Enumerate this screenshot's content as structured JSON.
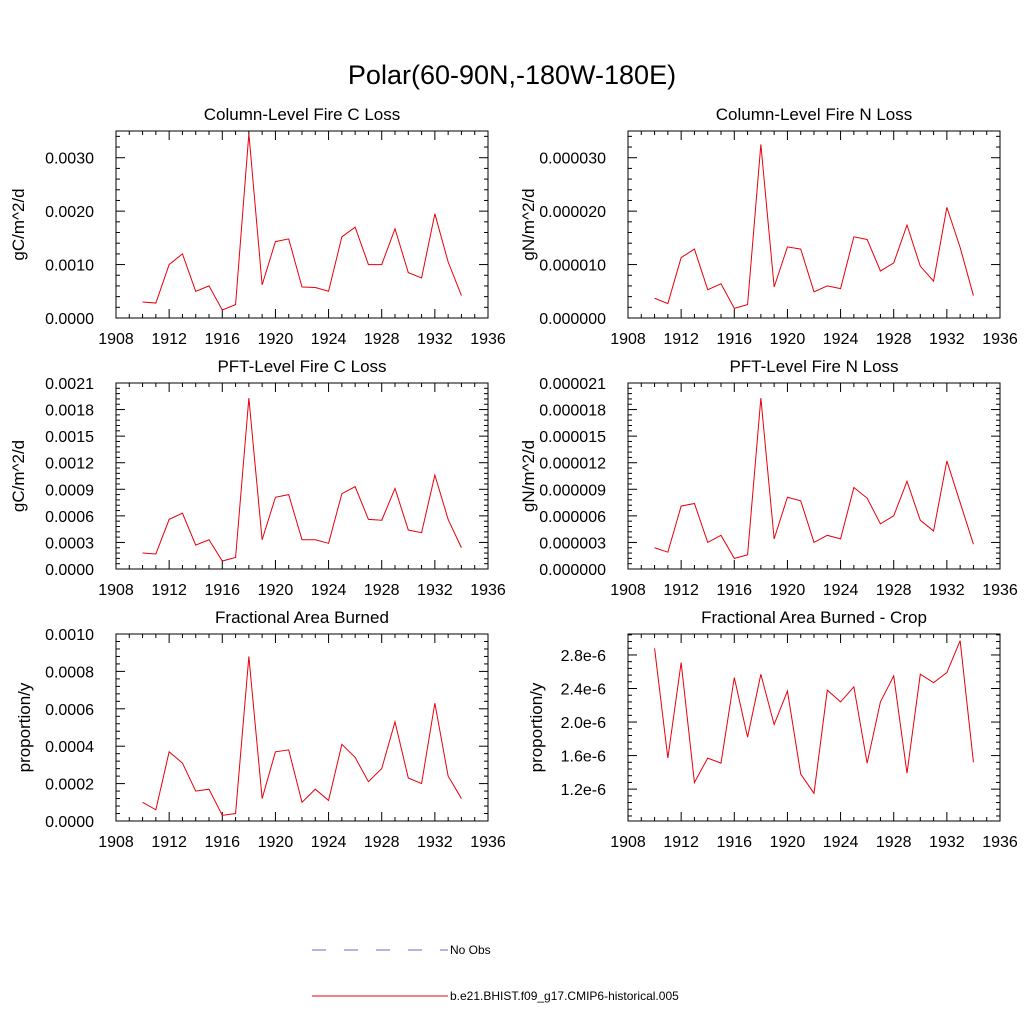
{
  "title": "Polar(60-90N,-180W-180E)",
  "colors": {
    "series": "#e8000b",
    "obs": "#6a6acd",
    "axis": "#000000"
  },
  "legend": {
    "entries": [
      {
        "label": "No Obs",
        "style": "dashed",
        "color": "#6a6acd"
      },
      {
        "label": "b.e21.BHIST.f09_g17.CMIP6-historical.005",
        "style": "solid",
        "color": "#e8000b"
      }
    ]
  },
  "chart_data": [
    {
      "type": "line",
      "title": "Column-Level Fire C Loss",
      "ylabel": "gC/m^2/d",
      "xlim": [
        1908,
        1936
      ],
      "ylim": [
        0,
        0.0035
      ],
      "xticks": [
        1908,
        1912,
        1916,
        1920,
        1924,
        1928,
        1932,
        1936
      ],
      "xtick_labels": [
        "1908",
        "1912",
        "1916",
        "1920",
        "1924",
        "1928",
        "1932",
        "1936"
      ],
      "yticks": [
        0,
        0.001,
        0.002,
        0.003
      ],
      "ytick_labels": [
        "0.0000",
        "0.0010",
        "0.0020",
        "0.0030"
      ],
      "series": [
        {
          "name": "b.e21.BHIST.f09_g17.CMIP6-historical.005",
          "x": [
            1910,
            1911,
            1912,
            1913,
            1914,
            1915,
            1916,
            1917,
            1918,
            1919,
            1920,
            1921,
            1922,
            1923,
            1924,
            1925,
            1926,
            1927,
            1928,
            1929,
            1930,
            1931,
            1932,
            1933,
            1934
          ],
          "values": [
            0.0003,
            0.00028,
            0.001,
            0.0012,
            0.0005,
            0.0006,
            0.00015,
            0.00025,
            0.00345,
            0.00062,
            0.00143,
            0.00148,
            0.00058,
            0.00057,
            0.0005,
            0.00152,
            0.0017,
            0.001,
            0.001,
            0.00167,
            0.00085,
            0.00075,
            0.00195,
            0.00105,
            0.00042
          ]
        }
      ]
    },
    {
      "type": "line",
      "title": "Column-Level Fire N Loss",
      "ylabel": "gN/m^2/d",
      "xlim": [
        1908,
        1936
      ],
      "ylim": [
        0,
        3.5e-05
      ],
      "xticks": [
        1908,
        1912,
        1916,
        1920,
        1924,
        1928,
        1932,
        1936
      ],
      "xtick_labels": [
        "1908",
        "1912",
        "1916",
        "1920",
        "1924",
        "1928",
        "1932",
        "1936"
      ],
      "yticks": [
        0,
        1e-05,
        2e-05,
        3e-05
      ],
      "ytick_labels": [
        "0.000000",
        "0.000010",
        "0.000020",
        "0.000030"
      ],
      "series": [
        {
          "name": "b.e21.BHIST.f09_g17.CMIP6-historical.005",
          "x": [
            1910,
            1911,
            1912,
            1913,
            1914,
            1915,
            1916,
            1917,
            1918,
            1919,
            1920,
            1921,
            1922,
            1923,
            1924,
            1925,
            1926,
            1927,
            1928,
            1929,
            1930,
            1931,
            1932,
            1933,
            1934
          ],
          "values": [
            3.7e-06,
            2.7e-06,
            1.13e-05,
            1.29e-05,
            5.3e-06,
            6.4e-06,
            1.8e-06,
            2.5e-06,
            3.25e-05,
            5.8e-06,
            1.33e-05,
            1.29e-05,
            4.9e-06,
            6e-06,
            5.5e-06,
            1.52e-05,
            1.47e-05,
            8.8e-06,
            1.03e-05,
            1.74e-05,
            9.7e-06,
            6.9e-06,
            2.07e-05,
            1.32e-05,
            4.2e-06
          ]
        }
      ]
    },
    {
      "type": "line",
      "title": "PFT-Level Fire C Loss",
      "ylabel": "gC/m^2/d",
      "xlim": [
        1908,
        1936
      ],
      "ylim": [
        0,
        0.0021
      ],
      "xticks": [
        1908,
        1912,
        1916,
        1920,
        1924,
        1928,
        1932,
        1936
      ],
      "xtick_labels": [
        "1908",
        "1912",
        "1916",
        "1920",
        "1924",
        "1928",
        "1932",
        "1936"
      ],
      "yticks": [
        0,
        0.0003,
        0.0006,
        0.0009,
        0.0012,
        0.0015,
        0.0018,
        0.0021
      ],
      "ytick_labels": [
        "0.0000",
        "0.0003",
        "0.0006",
        "0.0009",
        "0.0012",
        "0.0015",
        "0.0018",
        "0.0021"
      ],
      "series": [
        {
          "name": "b.e21.BHIST.f09_g17.CMIP6-historical.005",
          "x": [
            1910,
            1911,
            1912,
            1913,
            1914,
            1915,
            1916,
            1917,
            1918,
            1919,
            1920,
            1921,
            1922,
            1923,
            1924,
            1925,
            1926,
            1927,
            1928,
            1929,
            1930,
            1931,
            1932,
            1933,
            1934
          ],
          "values": [
            0.00018,
            0.00017,
            0.00056,
            0.00063,
            0.00027,
            0.00033,
            9e-05,
            0.00013,
            0.00193,
            0.00033,
            0.00081,
            0.00084,
            0.00033,
            0.00033,
            0.00029,
            0.00085,
            0.00093,
            0.00056,
            0.00055,
            0.00091,
            0.00044,
            0.00041,
            0.00106,
            0.00056,
            0.00024
          ]
        }
      ]
    },
    {
      "type": "line",
      "title": "PFT-Level Fire N Loss",
      "ylabel": "gN/m^2/d",
      "xlim": [
        1908,
        1936
      ],
      "ylim": [
        0,
        2.1e-05
      ],
      "xticks": [
        1908,
        1912,
        1916,
        1920,
        1924,
        1928,
        1932,
        1936
      ],
      "xtick_labels": [
        "1908",
        "1912",
        "1916",
        "1920",
        "1924",
        "1928",
        "1932",
        "1936"
      ],
      "yticks": [
        0,
        3e-06,
        6e-06,
        9e-06,
        1.2e-05,
        1.5e-05,
        1.8e-05,
        2.1e-05
      ],
      "ytick_labels": [
        "0.000000",
        "0.000003",
        "0.000006",
        "0.000009",
        "0.000012",
        "0.000015",
        "0.000018",
        "0.000021"
      ],
      "series": [
        {
          "name": "b.e21.BHIST.f09_g17.CMIP6-historical.005",
          "x": [
            1910,
            1911,
            1912,
            1913,
            1914,
            1915,
            1916,
            1917,
            1918,
            1919,
            1920,
            1921,
            1922,
            1923,
            1924,
            1925,
            1926,
            1927,
            1928,
            1929,
            1930,
            1931,
            1932,
            1933,
            1934
          ],
          "values": [
            2.4e-06,
            1.9e-06,
            7.1e-06,
            7.4e-06,
            3e-06,
            3.8e-06,
            1.2e-06,
            1.6e-06,
            1.93e-05,
            3.4e-06,
            8.1e-06,
            7.7e-06,
            3e-06,
            3.8e-06,
            3.4e-06,
            9.2e-06,
            8e-06,
            5.1e-06,
            6e-06,
            9.9e-06,
            5.5e-06,
            4.3e-06,
            1.22e-05,
            7.5e-06,
            2.8e-06
          ]
        }
      ]
    },
    {
      "type": "line",
      "title": "Fractional Area Burned",
      "ylabel": "proportion/y",
      "xlim": [
        1908,
        1936
      ],
      "ylim": [
        0,
        0.001
      ],
      "xticks": [
        1908,
        1912,
        1916,
        1920,
        1924,
        1928,
        1932,
        1936
      ],
      "xtick_labels": [
        "1908",
        "1912",
        "1916",
        "1920",
        "1924",
        "1928",
        "1932",
        "1936"
      ],
      "yticks": [
        0,
        0.0002,
        0.0004,
        0.0006,
        0.0008,
        0.001
      ],
      "ytick_labels": [
        "0.0000",
        "0.0002",
        "0.0004",
        "0.0006",
        "0.0008",
        "0.0010"
      ],
      "series": [
        {
          "name": "b.e21.BHIST.f09_g17.CMIP6-historical.005",
          "x": [
            1910,
            1911,
            1912,
            1913,
            1914,
            1915,
            1916,
            1917,
            1918,
            1919,
            1920,
            1921,
            1922,
            1923,
            1924,
            1925,
            1926,
            1927,
            1928,
            1929,
            1930,
            1931,
            1932,
            1933,
            1934
          ],
          "values": [
            0.0001,
            6e-05,
            0.00037,
            0.00031,
            0.00016,
            0.00017,
            3e-05,
            4e-05,
            0.00088,
            0.00012,
            0.00037,
            0.00038,
            0.0001,
            0.00017,
            0.00011,
            0.00041,
            0.00034,
            0.00021,
            0.00028,
            0.00053,
            0.00023,
            0.0002,
            0.00063,
            0.00024,
            0.00012
          ]
        }
      ]
    },
    {
      "type": "line",
      "title": "Fractional Area Burned - Crop",
      "ylabel": "proportion/y",
      "xlim": [
        1908,
        1936
      ],
      "ylim": [
        8.2e-07,
        3.05e-06
      ],
      "xticks": [
        1908,
        1912,
        1916,
        1920,
        1924,
        1928,
        1932,
        1936
      ],
      "xtick_labels": [
        "1908",
        "1912",
        "1916",
        "1920",
        "1924",
        "1928",
        "1932",
        "1936"
      ],
      "yticks": [
        1.2e-06,
        1.6e-06,
        2e-06,
        2.4e-06,
        2.8e-06
      ],
      "ytick_labels": [
        "1.2e-6",
        "1.6e-6",
        "2.0e-6",
        "2.4e-6",
        "2.8e-6"
      ],
      "series": [
        {
          "name": "b.e21.BHIST.f09_g17.CMIP6-historical.005",
          "x": [
            1910,
            1911,
            1912,
            1913,
            1914,
            1915,
            1916,
            1917,
            1918,
            1919,
            1920,
            1921,
            1922,
            1923,
            1924,
            1925,
            1926,
            1927,
            1928,
            1929,
            1930,
            1931,
            1932,
            1933,
            1934
          ],
          "values": [
            2.88e-06,
            1.57e-06,
            2.71e-06,
            1.28e-06,
            1.57e-06,
            1.51e-06,
            2.53e-06,
            1.82e-06,
            2.57e-06,
            1.97e-06,
            2.37e-06,
            1.38e-06,
            1.15e-06,
            2.38e-06,
            2.24e-06,
            2.42e-06,
            1.51e-06,
            2.24e-06,
            2.55e-06,
            1.39e-06,
            2.57e-06,
            2.47e-06,
            2.59e-06,
            2.97e-06,
            1.52e-06
          ]
        }
      ]
    }
  ]
}
